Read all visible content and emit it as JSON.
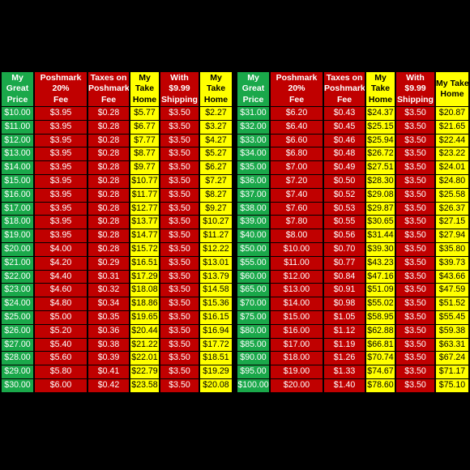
{
  "headers": [
    "My Great Price",
    "Poshmark 20% Fee",
    "Taxes on Poshmark Fee",
    "My Take Home",
    "With $9.99 Shipping",
    "My Take Home"
  ],
  "header_lines": [
    [
      "My",
      "Great",
      "Price"
    ],
    [
      "Poshmark",
      "20%",
      "Fee"
    ],
    [
      "Taxes on",
      "Poshmark",
      "Fee"
    ],
    [
      "My",
      "Take",
      "Home"
    ],
    [
      "With",
      "$9.99",
      "Shipping"
    ],
    [
      "My",
      "Take",
      "Home"
    ],
    [
      "My",
      "Great",
      "Price"
    ],
    [
      "Poshmark",
      "20%",
      "Fee"
    ],
    [
      "Taxes on",
      "Poshmark",
      "Fee"
    ],
    [
      "My",
      "Take",
      "Home"
    ],
    [
      "With",
      "$9.99",
      "Shipping"
    ],
    [
      "My Take",
      "Home"
    ]
  ],
  "colors": {
    "green": "#1aa84a",
    "red": "#c00000",
    "yellow": "#ffff00",
    "background": "#000000"
  },
  "left_rows": [
    [
      "$10.00",
      "$3.95",
      "$0.28",
      "$5.77",
      "$3.50",
      "$2.27"
    ],
    [
      "$11.00",
      "$3.95",
      "$0.28",
      "$6.77",
      "$3.50",
      "$3.27"
    ],
    [
      "$12.00",
      "$3.95",
      "$0.28",
      "$7.77",
      "$3.50",
      "$4.27"
    ],
    [
      "$13.00",
      "$3.95",
      "$0.28",
      "$8.77",
      "$3.50",
      "$5.27"
    ],
    [
      "$14.00",
      "$3.95",
      "$0.28",
      "$9.77",
      "$3.50",
      "$6.27"
    ],
    [
      "$15.00",
      "$3.95",
      "$0.28",
      "$10.77",
      "$3.50",
      "$7.27"
    ],
    [
      "$16.00",
      "$3.95",
      "$0.28",
      "$11.77",
      "$3.50",
      "$8.27"
    ],
    [
      "$17.00",
      "$3.95",
      "$0.28",
      "$12.77",
      "$3.50",
      "$9.27"
    ],
    [
      "$18.00",
      "$3.95",
      "$0.28",
      "$13.77",
      "$3.50",
      "$10.27"
    ],
    [
      "$19.00",
      "$3.95",
      "$0.28",
      "$14.77",
      "$3.50",
      "$11.27"
    ],
    [
      "$20.00",
      "$4.00",
      "$0.28",
      "$15.72",
      "$3.50",
      "$12.22"
    ],
    [
      "$21.00",
      "$4.20",
      "$0.29",
      "$16.51",
      "$3.50",
      "$13.01"
    ],
    [
      "$22.00",
      "$4.40",
      "$0.31",
      "$17.29",
      "$3.50",
      "$13.79"
    ],
    [
      "$23.00",
      "$4.60",
      "$0.32",
      "$18.08",
      "$3.50",
      "$14.58"
    ],
    [
      "$24.00",
      "$4.80",
      "$0.34",
      "$18.86",
      "$3.50",
      "$15.36"
    ],
    [
      "$25.00",
      "$5.00",
      "$0.35",
      "$19.65",
      "$3.50",
      "$16.15"
    ],
    [
      "$26.00",
      "$5.20",
      "$0.36",
      "$20.44",
      "$3.50",
      "$16.94"
    ],
    [
      "$27.00",
      "$5.40",
      "$0.38",
      "$21.22",
      "$3.50",
      "$17.72"
    ],
    [
      "$28.00",
      "$5.60",
      "$0.39",
      "$22.01",
      "$3.50",
      "$18.51"
    ],
    [
      "$29.00",
      "$5.80",
      "$0.41",
      "$22.79",
      "$3.50",
      "$19.29"
    ],
    [
      "$30.00",
      "$6.00",
      "$0.42",
      "$23.58",
      "$3.50",
      "$20.08"
    ]
  ],
  "right_rows": [
    [
      "$31.00",
      "$6.20",
      "$0.43",
      "$24.37",
      "$3.50",
      "$20.87"
    ],
    [
      "$32.00",
      "$6.40",
      "$0.45",
      "$25.15",
      "$3.50",
      "$21.65"
    ],
    [
      "$33.00",
      "$6.60",
      "$0.46",
      "$25.94",
      "$3.50",
      "$22.44"
    ],
    [
      "$34.00",
      "$6.80",
      "$0.48",
      "$26.72",
      "$3.50",
      "$23.22"
    ],
    [
      "$35.00",
      "$7.00",
      "$0.49",
      "$27.51",
      "$3.50",
      "$24.01"
    ],
    [
      "$36.00",
      "$7.20",
      "$0.50",
      "$28.30",
      "$3.50",
      "$24.80"
    ],
    [
      "$37.00",
      "$7.40",
      "$0.52",
      "$29.08",
      "$3.50",
      "$25.58"
    ],
    [
      "$38.00",
      "$7.60",
      "$0.53",
      "$29.87",
      "$3.50",
      "$26.37"
    ],
    [
      "$39.00",
      "$7.80",
      "$0.55",
      "$30.65",
      "$3.50",
      "$27.15"
    ],
    [
      "$40.00",
      "$8.00",
      "$0.56",
      "$31.44",
      "$3.50",
      "$27.94"
    ],
    [
      "$50.00",
      "$10.00",
      "$0.70",
      "$39.30",
      "$3.50",
      "$35.80"
    ],
    [
      "$55.00",
      "$11.00",
      "$0.77",
      "$43.23",
      "$3.50",
      "$39.73"
    ],
    [
      "$60.00",
      "$12.00",
      "$0.84",
      "$47.16",
      "$3.50",
      "$43.66"
    ],
    [
      "$65.00",
      "$13.00",
      "$0.91",
      "$51.09",
      "$3.50",
      "$47.59"
    ],
    [
      "$70.00",
      "$14.00",
      "$0.98",
      "$55.02",
      "$3.50",
      "$51.52"
    ],
    [
      "$75.00",
      "$15.00",
      "$1.05",
      "$58.95",
      "$3.50",
      "$55.45"
    ],
    [
      "$80.00",
      "$16.00",
      "$1.12",
      "$62.88",
      "$3.50",
      "$59.38"
    ],
    [
      "$85.00",
      "$17.00",
      "$1.19",
      "$66.81",
      "$3.50",
      "$63.31"
    ],
    [
      "$90.00",
      "$18.00",
      "$1.26",
      "$70.74",
      "$3.50",
      "$67.24"
    ],
    [
      "$95.00",
      "$19.00",
      "$1.33",
      "$74.67",
      "$3.50",
      "$71.17"
    ],
    [
      "$100.00",
      "$20.00",
      "$1.40",
      "$78.60",
      "$3.50",
      "$75.10"
    ]
  ]
}
